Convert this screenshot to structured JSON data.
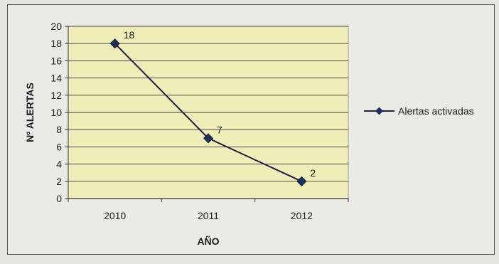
{
  "chart_data": {
    "type": "line",
    "title": "",
    "xlabel": "AÑO",
    "ylabel": "Nº ALERTAS",
    "categories": [
      "2010",
      "2011",
      "2012"
    ],
    "ylim": [
      0,
      20
    ],
    "ytick_step": 2,
    "series": [
      {
        "name": "Alertas activadas",
        "values": [
          18,
          7,
          2
        ],
        "data_labels": [
          "18",
          "7",
          "2"
        ]
      }
    ],
    "grid": "horizontal",
    "legend_position": "right",
    "colors": {
      "plot_background": "#efeeb8",
      "line": "#1f1f3f",
      "marker": "#1f2f5c"
    }
  }
}
